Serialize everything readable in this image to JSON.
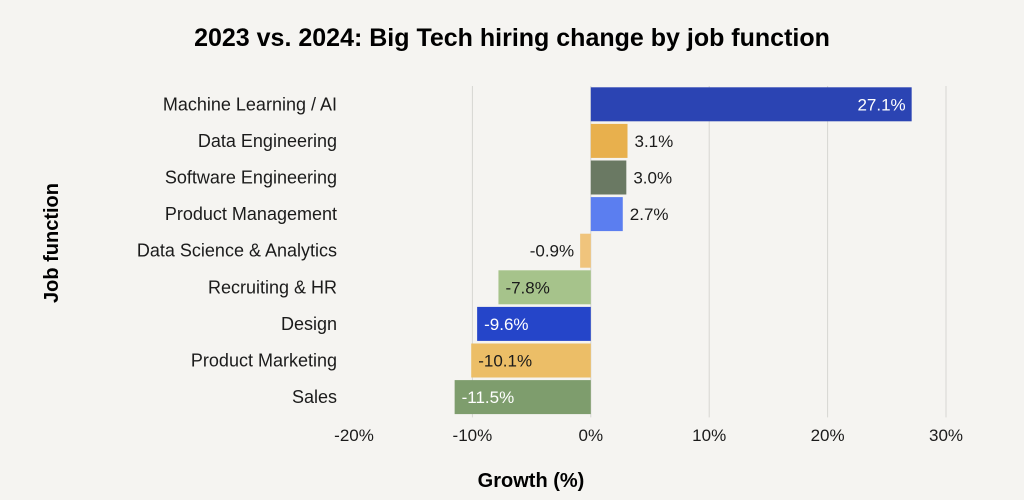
{
  "chart_data": {
    "type": "bar",
    "orientation": "horizontal",
    "title": "2023 vs. 2024: Big Tech hiring change by job function",
    "xlabel": "Growth (%)",
    "ylabel": "Job function",
    "xlim": [
      -20,
      30
    ],
    "xticks": [
      -20,
      -10,
      0,
      10,
      20,
      30
    ],
    "xtick_labels": [
      "-20%",
      "-10%",
      "0%",
      "10%",
      "20%",
      "30%"
    ],
    "grid": "vertical",
    "legend": "none",
    "categories": [
      "Machine Learning / AI",
      "Data Engineering",
      "Software Engineering",
      "Product Management",
      "Data Science & Analytics",
      "Recruiting & HR",
      "Design",
      "Product Marketing",
      "Sales"
    ],
    "values": [
      27.1,
      3.1,
      3.0,
      2.7,
      -0.9,
      -7.8,
      -9.6,
      -10.1,
      -11.5
    ],
    "value_labels": [
      "27.1%",
      "3.1%",
      "3.0%",
      "2.7%",
      "-0.9%",
      "-7.8%",
      "-9.6%",
      "-10.1%",
      "-11.5%"
    ],
    "colors": [
      "#2b44b3",
      "#e8b04d",
      "#6a7963",
      "#5b7ef0",
      "#f0c47c",
      "#a6c38b",
      "#2545c9",
      "#ecbe67",
      "#7e9d6d"
    ],
    "label_colors": [
      "#ffffff",
      "#1b1b1b",
      "#1b1b1b",
      "#1b1b1b",
      "#1b1b1b",
      "#1b1b1b",
      "#ffffff",
      "#1b1b1b",
      "#ffffff"
    ],
    "label_inside": [
      true,
      false,
      false,
      false,
      false,
      true,
      true,
      true,
      true
    ]
  },
  "colors": {
    "background": "#f5f4f1",
    "gridline": "#d6d6d2",
    "text": "#1b1b1b"
  }
}
